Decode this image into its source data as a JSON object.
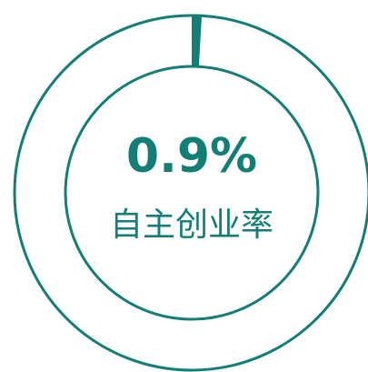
{
  "chart_data": {
    "type": "donut",
    "categories": [
      "自主创业率"
    ],
    "values": [
      0.9
    ],
    "value_labels": [
      "0.9%"
    ],
    "color": "#137e76"
  }
}
